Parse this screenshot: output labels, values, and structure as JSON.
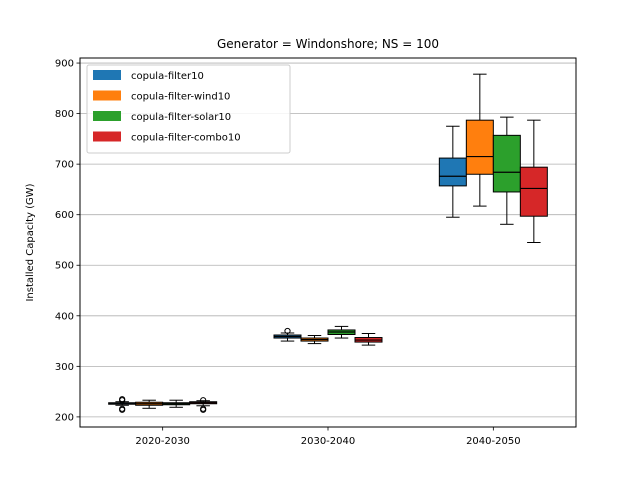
{
  "chart_data": {
    "type": "box",
    "title": "Generator = Windonshore; NS = 100",
    "xlabel": "",
    "ylabel": "Installed Capacity (GW)",
    "ylim": [
      180,
      910
    ],
    "yticks": [
      200,
      300,
      400,
      500,
      600,
      700,
      800,
      900
    ],
    "grid": "y-major",
    "legend_position": "upper-left",
    "categories": [
      "2020-2030",
      "2030-2040",
      "2040-2050"
    ],
    "series": [
      {
        "name": "copula-filter10",
        "color": "#1f77b4",
        "boxes": [
          {
            "whislo": 223,
            "q1": 226,
            "med": 227,
            "q3": 228,
            "whishi": 230,
            "fliers": [
              214,
              216,
              233,
              235
            ]
          },
          {
            "whislo": 350,
            "q1": 356,
            "med": 359,
            "q3": 362,
            "whishi": 366,
            "fliers": [
              370
            ]
          },
          {
            "whislo": 595,
            "q1": 657,
            "med": 676,
            "q3": 712,
            "whishi": 775,
            "fliers": []
          }
        ]
      },
      {
        "name": "copula-filter-wind10",
        "color": "#ff7f0e",
        "boxes": [
          {
            "whislo": 217,
            "q1": 223,
            "med": 226,
            "q3": 229,
            "whishi": 233,
            "fliers": []
          },
          {
            "whislo": 345,
            "q1": 350,
            "med": 353,
            "q3": 356,
            "whishi": 361,
            "fliers": []
          },
          {
            "whislo": 617,
            "q1": 680,
            "med": 715,
            "q3": 787,
            "whishi": 878,
            "fliers": []
          }
        ]
      },
      {
        "name": "copula-filter-solar10",
        "color": "#2ca02c",
        "boxes": [
          {
            "whislo": 219,
            "q1": 224,
            "med": 226,
            "q3": 228,
            "whishi": 233,
            "fliers": []
          },
          {
            "whislo": 356,
            "q1": 363,
            "med": 368,
            "q3": 372,
            "whishi": 379,
            "fliers": []
          },
          {
            "whislo": 581,
            "q1": 645,
            "med": 684,
            "q3": 757,
            "whishi": 793,
            "fliers": []
          }
        ]
      },
      {
        "name": "copula-filter-combo10",
        "color": "#d62728",
        "boxes": [
          {
            "whislo": 222,
            "q1": 226,
            "med": 228,
            "q3": 230,
            "whishi": 232,
            "fliers": [
              214,
              216,
              233
            ]
          },
          {
            "whislo": 342,
            "q1": 348,
            "med": 352,
            "q3": 357,
            "whishi": 365,
            "fliers": []
          },
          {
            "whislo": 545,
            "q1": 597,
            "med": 652,
            "q3": 694,
            "whishi": 787,
            "fliers": []
          }
        ]
      }
    ]
  }
}
